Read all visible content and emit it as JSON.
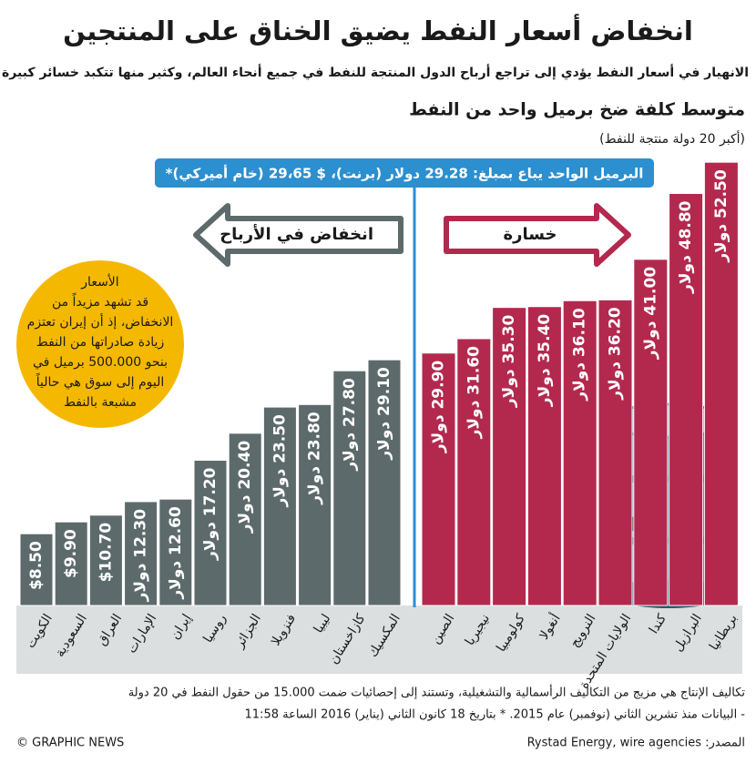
{
  "chart_data": {
    "type": "bar",
    "title": "انخفاض أسعار النفط يضيق الخناق على المنتجين",
    "subtitle": "الانهيار في أسعار النفط يؤدي إلى تراجع أرباح الدول المنتجة للنفط في جميع أنحاء العالم، وكثير منها تتكبد خسائر كبيرة",
    "heading": "متوسط كلفة ضخ برميل واحد من النفط",
    "subheading": "(أكبر 20 دولة منتجة للنفط)",
    "price_banner": "البرميل الواحد يباع بمبلغ: 29.28 دولار (برنت)، $ 29،65 (خام أميركي)*",
    "arrow_left": "انخفاض في الأرباح",
    "arrow_right": "خسارة",
    "note_lines": [
      "الأسعار",
      "قد تشهد مزيداً من",
      "الانخفاض، إذ أن إيران تعتزم",
      "زيادة صادراتها من النفط",
      "بنحو 500.000 برميل في",
      "اليوم إلى سوق هي حالياً",
      "مشبعة بالنفط"
    ],
    "categories": [
      "الكويت",
      "السعودية",
      "العراق",
      "الإمارات",
      "إيران",
      "روسيا",
      "الجزائر",
      "فنزويلا",
      "ليبيا",
      "كازاخستان",
      "المكسيك",
      "الصين",
      "نيجيريا",
      "كولومبيا",
      "أنغولا",
      "النرويج",
      "الولايات المتحدة",
      "كندا",
      "البرازيل",
      "بريطانيا"
    ],
    "values": [
      8.5,
      9.9,
      10.7,
      12.3,
      12.6,
      17.2,
      20.4,
      23.5,
      23.8,
      27.8,
      29.1,
      29.9,
      31.6,
      35.3,
      35.4,
      36.1,
      36.2,
      41.0,
      48.8,
      52.5
    ],
    "value_labels": [
      "$8.50",
      "$9.90",
      "$10.70",
      "12.30 دولار",
      "12.60 دولار",
      "17.20 دولار",
      "20.40 دولار",
      "23.50 دولار",
      "23.80 دولار",
      "27.80 دولار",
      "29.10 دولار",
      "29.90 دولار",
      "31.60 دولار",
      "35.30 دولار",
      "35.40 دولار",
      "36.10 دولار",
      "36.20 دولار",
      "41.00 دولار",
      "48.80 دولار",
      "52.50 دولار"
    ],
    "colors": [
      "#5d6a6b",
      "#5d6a6b",
      "#5d6a6b",
      "#5d6a6b",
      "#5d6a6b",
      "#5d6a6b",
      "#5d6a6b",
      "#5d6a6b",
      "#5d6a6b",
      "#5d6a6b",
      "#5d6a6b",
      "#b3294e",
      "#b3294e",
      "#b3294e",
      "#b3294e",
      "#b3294e",
      "#b3294e",
      "#b3294e",
      "#b3294e",
      "#b3294e"
    ],
    "ylim": [
      0,
      55
    ],
    "footnote": [
      "تكاليف الإنتاج هي مزيج من التكاليف الرأسمالية والتشغيلية، وتستند إلى إحصائيات ضمت 15.000 من حقول النفط في 20 دولة",
      "- البيانات منذ تشرين الثاني (نوفمبر) عام 2015. * بتاريخ 18 كانون الثاني (يناير) 2016 الساعة 11:58"
    ],
    "source": "المصدر: Rystad Energy, wire agencies",
    "credit": "© GRAPHIC NEWS"
  }
}
